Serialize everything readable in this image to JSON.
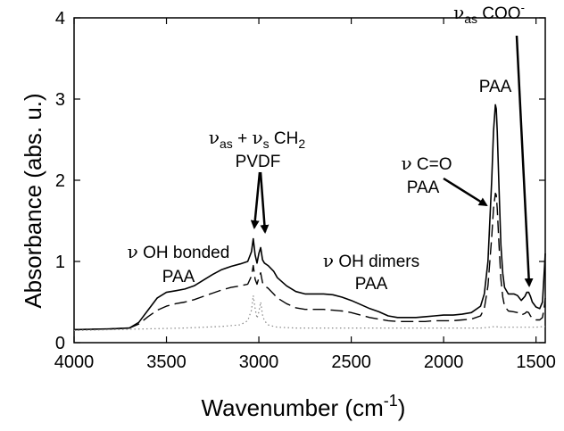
{
  "chart_data": {
    "type": "line",
    "title": "",
    "xlabel": {
      "main": "Wavenumber (cm",
      "sup": "-1",
      "close": ")"
    },
    "ylabel": "Absorbance (abs. u.)",
    "xlim": [
      4000,
      1450
    ],
    "ylim": [
      0,
      4
    ],
    "x_reversed": true,
    "grid": false,
    "legend": "none",
    "x_ticks": [
      {
        "value": 4000,
        "label": "4000"
      },
      {
        "value": 3500,
        "label": "3500"
      },
      {
        "value": 3000,
        "label": "3000"
      },
      {
        "value": 2500,
        "label": "2500"
      },
      {
        "value": 2000,
        "label": "2000"
      },
      {
        "value": 1500,
        "label": "1500"
      }
    ],
    "y_ticks": [
      {
        "value": 0,
        "label": "0"
      },
      {
        "value": 1,
        "label": "1"
      },
      {
        "value": 2,
        "label": "2"
      },
      {
        "value": 3,
        "label": "3"
      },
      {
        "value": 4,
        "label": "4"
      }
    ],
    "series": [
      {
        "style": "solid",
        "x": [
          4000,
          3800,
          3700,
          3650,
          3600,
          3550,
          3500,
          3450,
          3400,
          3350,
          3300,
          3250,
          3200,
          3150,
          3100,
          3060,
          3040,
          3030,
          3020,
          3010,
          3000,
          2990,
          2980,
          2970,
          2950,
          2920,
          2900,
          2850,
          2800,
          2750,
          2700,
          2650,
          2600,
          2550,
          2500,
          2450,
          2400,
          2350,
          2300,
          2250,
          2200,
          2150,
          2100,
          2050,
          2000,
          1950,
          1900,
          1850,
          1800,
          1780,
          1760,
          1740,
          1730,
          1720,
          1715,
          1710,
          1700,
          1690,
          1680,
          1670,
          1650,
          1620,
          1600,
          1580,
          1560,
          1550,
          1540,
          1530,
          1520,
          1500,
          1480,
          1465,
          1455,
          1450
        ],
        "y": [
          0.16,
          0.17,
          0.18,
          0.25,
          0.4,
          0.55,
          0.62,
          0.64,
          0.66,
          0.7,
          0.77,
          0.84,
          0.9,
          0.94,
          0.97,
          1.0,
          1.12,
          1.28,
          1.08,
          0.98,
          1.1,
          1.17,
          1.02,
          0.98,
          0.95,
          0.88,
          0.8,
          0.7,
          0.63,
          0.6,
          0.6,
          0.6,
          0.59,
          0.56,
          0.52,
          0.47,
          0.42,
          0.38,
          0.33,
          0.31,
          0.31,
          0.31,
          0.32,
          0.33,
          0.34,
          0.34,
          0.35,
          0.37,
          0.45,
          0.6,
          1.0,
          2.0,
          2.6,
          2.93,
          2.88,
          2.6,
          1.9,
          1.2,
          0.85,
          0.68,
          0.6,
          0.6,
          0.58,
          0.52,
          0.57,
          0.62,
          0.62,
          0.57,
          0.5,
          0.44,
          0.42,
          0.5,
          0.9,
          1.1
        ]
      },
      {
        "style": "dashed",
        "x": [
          4000,
          3800,
          3700,
          3650,
          3600,
          3550,
          3500,
          3450,
          3400,
          3350,
          3300,
          3250,
          3200,
          3150,
          3100,
          3060,
          3040,
          3030,
          3020,
          3010,
          3000,
          2990,
          2980,
          2970,
          2950,
          2920,
          2900,
          2850,
          2800,
          2750,
          2700,
          2650,
          2600,
          2550,
          2500,
          2450,
          2400,
          2350,
          2300,
          2250,
          2200,
          2150,
          2100,
          2050,
          2000,
          1950,
          1900,
          1850,
          1800,
          1780,
          1760,
          1740,
          1730,
          1720,
          1715,
          1710,
          1700,
          1690,
          1680,
          1670,
          1650,
          1620,
          1600,
          1580,
          1560,
          1550,
          1540,
          1530,
          1520,
          1500,
          1480,
          1465,
          1455,
          1450
        ],
        "y": [
          0.16,
          0.17,
          0.18,
          0.23,
          0.32,
          0.4,
          0.45,
          0.48,
          0.5,
          0.53,
          0.57,
          0.61,
          0.65,
          0.68,
          0.7,
          0.72,
          0.82,
          0.95,
          0.78,
          0.72,
          0.8,
          0.86,
          0.74,
          0.7,
          0.67,
          0.6,
          0.55,
          0.48,
          0.43,
          0.41,
          0.41,
          0.41,
          0.4,
          0.39,
          0.37,
          0.34,
          0.31,
          0.29,
          0.27,
          0.26,
          0.26,
          0.26,
          0.26,
          0.27,
          0.27,
          0.27,
          0.28,
          0.29,
          0.33,
          0.42,
          0.7,
          1.3,
          1.65,
          1.84,
          1.82,
          1.65,
          1.2,
          0.78,
          0.56,
          0.45,
          0.39,
          0.38,
          0.37,
          0.34,
          0.36,
          0.38,
          0.37,
          0.33,
          0.3,
          0.28,
          0.28,
          0.31,
          0.45,
          0.55
        ]
      },
      {
        "style": "dotted",
        "x": [
          4000,
          3800,
          3600,
          3400,
          3200,
          3100,
          3060,
          3040,
          3030,
          3020,
          3010,
          3000,
          2990,
          2980,
          2970,
          2950,
          2920,
          2900,
          2800,
          2600,
          2400,
          2200,
          2000,
          1800,
          1750,
          1720,
          1700,
          1650,
          1600,
          1550,
          1500,
          1450
        ],
        "y": [
          0.15,
          0.16,
          0.17,
          0.18,
          0.2,
          0.22,
          0.27,
          0.4,
          0.58,
          0.42,
          0.3,
          0.38,
          0.5,
          0.34,
          0.27,
          0.22,
          0.2,
          0.19,
          0.18,
          0.18,
          0.18,
          0.18,
          0.18,
          0.18,
          0.19,
          0.2,
          0.19,
          0.19,
          0.19,
          0.19,
          0.19,
          0.2
        ]
      }
    ],
    "annotations": [
      {
        "id": "oh-bonded",
        "symbol": "ν",
        "line1": " OH bonded",
        "line2": "PAA"
      },
      {
        "id": "oh-dimers",
        "symbol": "ν",
        "line1": " OH dimers",
        "line2": "PAA"
      },
      {
        "id": "ch2",
        "sym1": "ν",
        "sub1": "as",
        "mid": " + ",
        "sym2": "ν",
        "sub2": "s",
        "mid2": " CH",
        "sub3": "2",
        "line2": "PVDF"
      },
      {
        "id": "co",
        "symbol": "ν",
        "line1": " C=O",
        "line2": "PAA"
      },
      {
        "id": "coo",
        "symbol": "ν",
        "sub": "as",
        "line1": " COO",
        "sup": "-",
        "line2": "PAA"
      }
    ]
  }
}
